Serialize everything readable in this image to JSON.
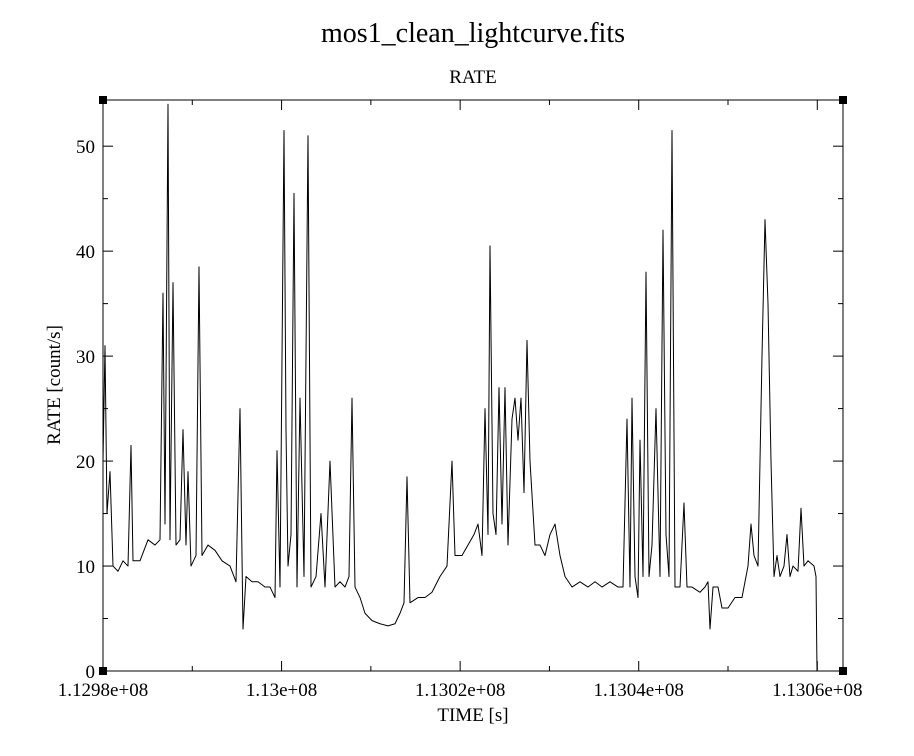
{
  "chart_data": {
    "type": "line",
    "title": "mos1_clean_lightcurve.fits",
    "subtitle": "RATE",
    "x_label": "TIME [s]",
    "y_label": "RATE [count/s]",
    "xlim": [
      112980000,
      113062880
    ],
    "ylim": [
      0,
      54.4
    ],
    "xticks": [
      {
        "value": 112980000,
        "label": "1.1298e+08"
      },
      {
        "value": 113000000,
        "label": "1.13e+08"
      },
      {
        "value": 113020000,
        "label": "1.1302e+08"
      },
      {
        "value": 113040000,
        "label": "1.1304e+08"
      },
      {
        "value": 113060000,
        "label": "1.1306e+08"
      }
    ],
    "xminorticks": [
      112990000,
      113010000,
      113030000,
      113050000
    ],
    "yticks": [
      0,
      10,
      20,
      30,
      40,
      50
    ],
    "yminorticks": [
      5,
      15,
      25,
      35,
      45
    ],
    "x": [
      112980000,
      112980224,
      112980448,
      112980784,
      112981120,
      112981680,
      112982240,
      112982800,
      112983136,
      112983360,
      112984144,
      112985040,
      112985824,
      112986384,
      112986720,
      112986944,
      112987280,
      112987504,
      112987840,
      112988176,
      112988624,
      112988960,
      112989296,
      112989520,
      112989856,
      112990416,
      112990752,
      112991088,
      112991760,
      112992544,
      112993328,
      112994224,
      112994896,
      112995344,
      112995680,
      112996016,
      112996688,
      112997360,
      112998144,
      112998704,
      112999264,
      112999488,
      112999824,
      113000272,
      113000496,
      113000720,
      113001056,
      113001392,
      113001728,
      113002064,
      113002512,
      113002960,
      113003296,
      113003856,
      113004416,
      113004864,
      113005424,
      113005984,
      113006544,
      113007104,
      113007552,
      113007888,
      113008224,
      113008784,
      113009344,
      113010128,
      113011024,
      113011920,
      113012704,
      113013264,
      113013712,
      113014048,
      113014384,
      113015280,
      113016064,
      113016848,
      113017744,
      113018528,
      113019088,
      113019424,
      113020208,
      113020880,
      113021552,
      113022000,
      113022448,
      113022784,
      113023120,
      113023344,
      113023680,
      113024016,
      113024352,
      113024688,
      113025024,
      113025360,
      113025808,
      113026144,
      113026480,
      113026816,
      113027152,
      113027488,
      113027824,
      113028384,
      113028944,
      113029504,
      113030064,
      113030624,
      113031184,
      113031744,
      113032528,
      113033424,
      113034320,
      113035104,
      113035888,
      113036784,
      113037680,
      113038240,
      113038688,
      113039024,
      113039248,
      113039584,
      113039920,
      113040144,
      113040480,
      113040816,
      113041152,
      113041488,
      113041936,
      113042384,
      113042720,
      113043056,
      113043392,
      113043728,
      113044064,
      113044624,
      113045072,
      113045408,
      113045968,
      113046864,
      113047424,
      113047760,
      113047984,
      113048320,
      113048880,
      113049328,
      113050000,
      113050784,
      113051568,
      113052240,
      113052576,
      113052912,
      113053360,
      113053808,
      113054144,
      113054480,
      113054816,
      113055152,
      113055488,
      113055824,
      113056272,
      113056608,
      113056944,
      113057280,
      113057840,
      113058176,
      113058512,
      113058960,
      113059632,
      113059856,
      113059968
    ],
    "series": [
      {
        "name": "RATE",
        "color": "#000000",
        "values": [
          20,
          31,
          15,
          19,
          10,
          9.5,
          10.5,
          10,
          21.5,
          10.5,
          10.5,
          12.5,
          12,
          12.5,
          36,
          14,
          54,
          12.5,
          37,
          12,
          12.5,
          23,
          12,
          19,
          10,
          11,
          38.5,
          11,
          12,
          11.5,
          10.5,
          10,
          8.5,
          25,
          4,
          9,
          8.5,
          8.5,
          8,
          8,
          7,
          21,
          8,
          51.5,
          23,
          10,
          13,
          45.5,
          8,
          26,
          9,
          51,
          8,
          9,
          15,
          8,
          20,
          8,
          8.5,
          8,
          9,
          26,
          8,
          7,
          5.5,
          4.8,
          4.5,
          4.3,
          4.5,
          5.5,
          6.5,
          18.5,
          6.5,
          7,
          7,
          7.5,
          9,
          10,
          20,
          11,
          11,
          12,
          13,
          14,
          11,
          25,
          13,
          40.5,
          15,
          13,
          27,
          14,
          27,
          12,
          24,
          26,
          22,
          26,
          17,
          31.5,
          20,
          12,
          12,
          11,
          13,
          14,
          11,
          9,
          8,
          8.5,
          8,
          8.5,
          8,
          8.5,
          8,
          8,
          24,
          8,
          26,
          9,
          7,
          22,
          9,
          38,
          9,
          12,
          25,
          9,
          42,
          13,
          9,
          51.5,
          8,
          8,
          16,
          8,
          8,
          7.5,
          8,
          8.5,
          4,
          8,
          8,
          6,
          6,
          7,
          7,
          10,
          14,
          11,
          10,
          30,
          43,
          35,
          20,
          9,
          11,
          9,
          10,
          13,
          9,
          10,
          9.5,
          15.5,
          10,
          10.5,
          10,
          9,
          0
        ]
      }
    ]
  }
}
